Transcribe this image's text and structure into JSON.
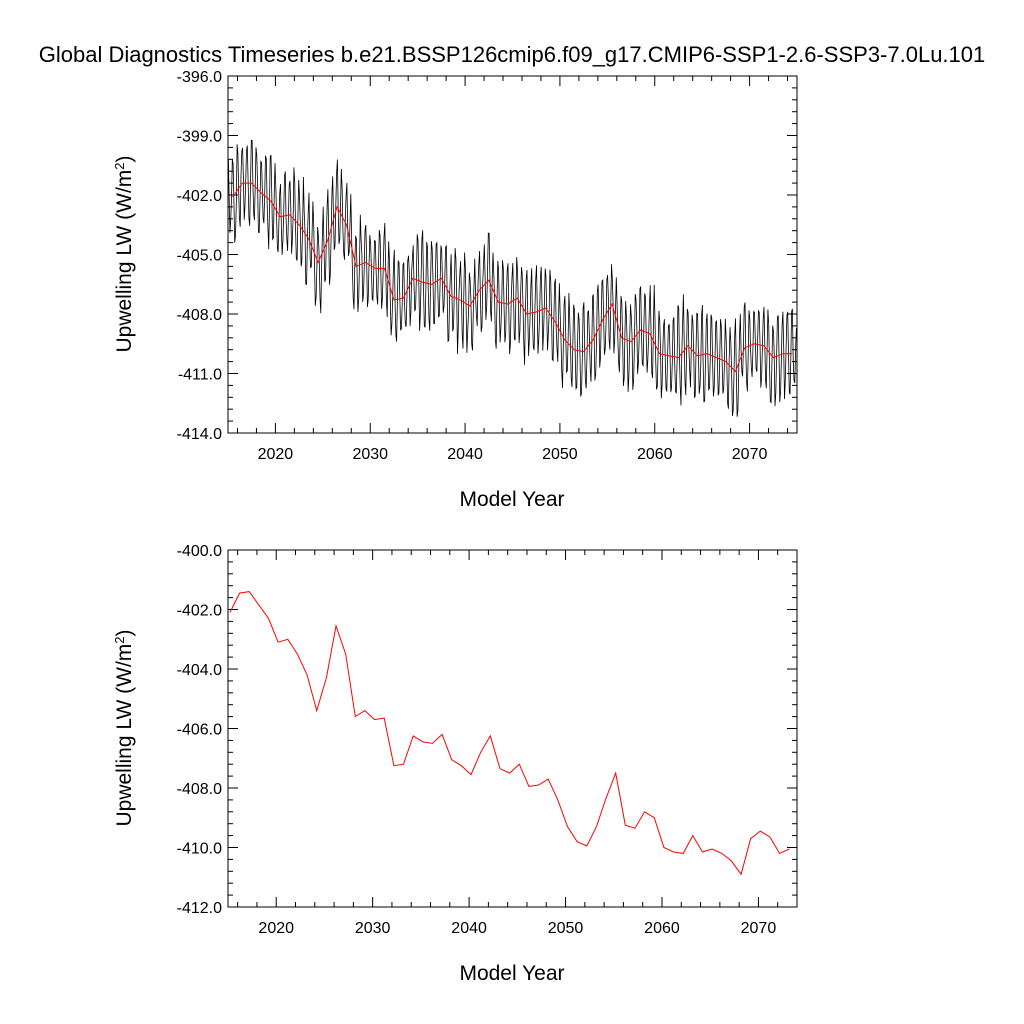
{
  "title": "Global Diagnostics Timeseries b.e21.BSSP126cmip6.f09_g17.CMIP6-SSP1-2.6-SSP3-7.0Lu.101",
  "colors": {
    "monthly": "#000000",
    "annual": "#ff0000"
  },
  "chart_data": [
    {
      "type": "line",
      "xlabel": "Model Year",
      "ylabel": "Upwelling LW (W/m",
      "ylabel_sup": "2",
      "ylabel_close": ")",
      "xlim": [
        2015,
        2075
      ],
      "ylim": [
        -414.0,
        -396.0
      ],
      "xticks": [
        2020,
        2030,
        2040,
        2050,
        2060,
        2070
      ],
      "yticks": [
        "-396.0",
        "-399.0",
        "-402.0",
        "-405.0",
        "-408.0",
        "-411.0",
        "-414.0"
      ],
      "grid": false,
      "monthly_series": {
        "start_year": 2015.04,
        "step": 0.0833,
        "mean": [
          -402.1,
          -401.4,
          -401.4,
          -401.9,
          -402.3,
          -403.1,
          -403.0,
          -403.5,
          -404.2,
          -405.4,
          -404.3,
          -402.6,
          -403.5,
          -405.6,
          -405.4,
          -405.7,
          -405.7,
          -407.3,
          -407.2,
          -406.2,
          -406.4,
          -406.5,
          -406.2,
          -407.1,
          -407.3,
          -407.6,
          -406.8,
          -406.3,
          -407.4,
          -407.5,
          -407.2,
          -408.0,
          -407.9,
          -407.7,
          -408.4,
          -409.3,
          -409.8,
          -409.9,
          -409.3,
          -408.3,
          -407.5,
          -409.2,
          -409.4,
          -408.8,
          -409.0,
          -410.0,
          -410.1,
          -410.2,
          -409.6,
          -410.1,
          -410.0,
          -410.2,
          -410.4,
          -410.9,
          -409.7,
          -409.5,
          -409.6,
          -410.2,
          -410.0,
          -410.0
        ],
        "amplitude": 2.4
      },
      "annual_series": {
        "x": [
          2015.5,
          2016.5,
          2017.5,
          2018.5,
          2019.5,
          2020.5,
          2021.5,
          2022.5,
          2023.5,
          2024.5,
          2025.5,
          2026.5,
          2027.5,
          2028.5,
          2029.5,
          2030.5,
          2031.5,
          2032.5,
          2033.5,
          2034.5,
          2035.5,
          2036.5,
          2037.5,
          2038.5,
          2039.5,
          2040.5,
          2041.5,
          2042.5,
          2043.5,
          2044.5,
          2045.5,
          2046.5,
          2047.5,
          2048.5,
          2049.5,
          2050.5,
          2051.5,
          2052.5,
          2053.5,
          2054.5,
          2055.5,
          2056.5,
          2057.5,
          2058.5,
          2059.5,
          2060.5,
          2061.5,
          2062.5,
          2063.5,
          2064.5,
          2065.5,
          2066.5,
          2067.5,
          2068.5,
          2069.5,
          2070.5,
          2071.5,
          2072.5,
          2073.5,
          2074.5
        ],
        "values": [
          -402.1,
          -401.4,
          -401.4,
          -401.9,
          -402.3,
          -403.1,
          -403.0,
          -403.5,
          -404.2,
          -405.4,
          -404.3,
          -402.6,
          -403.5,
          -405.6,
          -405.4,
          -405.7,
          -405.7,
          -407.3,
          -407.2,
          -406.2,
          -406.4,
          -406.5,
          -406.2,
          -407.1,
          -407.3,
          -407.6,
          -406.8,
          -406.3,
          -407.4,
          -407.5,
          -407.2,
          -408.0,
          -407.9,
          -407.7,
          -408.4,
          -409.3,
          -409.8,
          -409.9,
          -409.3,
          -408.3,
          -407.5,
          -409.2,
          -409.4,
          -408.8,
          -409.0,
          -410.0,
          -410.1,
          -410.2,
          -409.6,
          -410.1,
          -410.0,
          -410.2,
          -410.4,
          -410.9,
          -409.7,
          -409.5,
          -409.6,
          -410.2,
          -410.0,
          -410.0
        ]
      }
    },
    {
      "type": "line",
      "xlabel": "Model Year",
      "ylabel": "Upwelling LW (W/m",
      "ylabel_sup": "2",
      "ylabel_close": ")",
      "xlim": [
        2015,
        2074
      ],
      "ylim": [
        -412.0,
        -400.0
      ],
      "xticks": [
        2020,
        2030,
        2040,
        2050,
        2060,
        2070
      ],
      "yticks": [
        "-400.0",
        "-402.0",
        "-404.0",
        "-406.0",
        "-408.0",
        "-410.0",
        "-412.0"
      ],
      "grid": false,
      "annual_series": {
        "x": [
          2015.2,
          2016.2,
          2017.2,
          2018.2,
          2019.2,
          2020.2,
          2021.2,
          2022.2,
          2023.2,
          2024.2,
          2025.2,
          2026.2,
          2027.2,
          2028.2,
          2029.2,
          2030.2,
          2031.2,
          2032.2,
          2033.2,
          2034.2,
          2035.2,
          2036.2,
          2037.2,
          2038.2,
          2039.2,
          2040.2,
          2041.2,
          2042.2,
          2043.2,
          2044.2,
          2045.2,
          2046.2,
          2047.2,
          2048.2,
          2049.2,
          2050.2,
          2051.2,
          2052.2,
          2053.2,
          2054.2,
          2055.2,
          2056.2,
          2057.2,
          2058.2,
          2059.2,
          2060.2,
          2061.2,
          2062.2,
          2063.2,
          2064.2,
          2065.2,
          2066.2,
          2067.2,
          2068.2,
          2069.2,
          2070.2,
          2071.2,
          2072.2,
          2073.2
        ],
        "values": [
          -402.1,
          -401.45,
          -401.4,
          -401.85,
          -402.3,
          -403.1,
          -403.0,
          -403.5,
          -404.2,
          -405.4,
          -404.3,
          -402.55,
          -403.5,
          -405.6,
          -405.4,
          -405.7,
          -405.65,
          -407.25,
          -407.2,
          -406.25,
          -406.45,
          -406.5,
          -406.2,
          -407.05,
          -407.25,
          -407.55,
          -406.8,
          -406.25,
          -407.35,
          -407.5,
          -407.2,
          -407.95,
          -407.9,
          -407.7,
          -408.4,
          -409.3,
          -409.8,
          -409.95,
          -409.3,
          -408.35,
          -407.5,
          -409.25,
          -409.35,
          -408.8,
          -409.0,
          -410.0,
          -410.15,
          -410.2,
          -409.6,
          -410.15,
          -410.05,
          -410.2,
          -410.45,
          -410.9,
          -409.7,
          -409.45,
          -409.65,
          -410.2,
          -410.05
        ]
      }
    }
  ]
}
